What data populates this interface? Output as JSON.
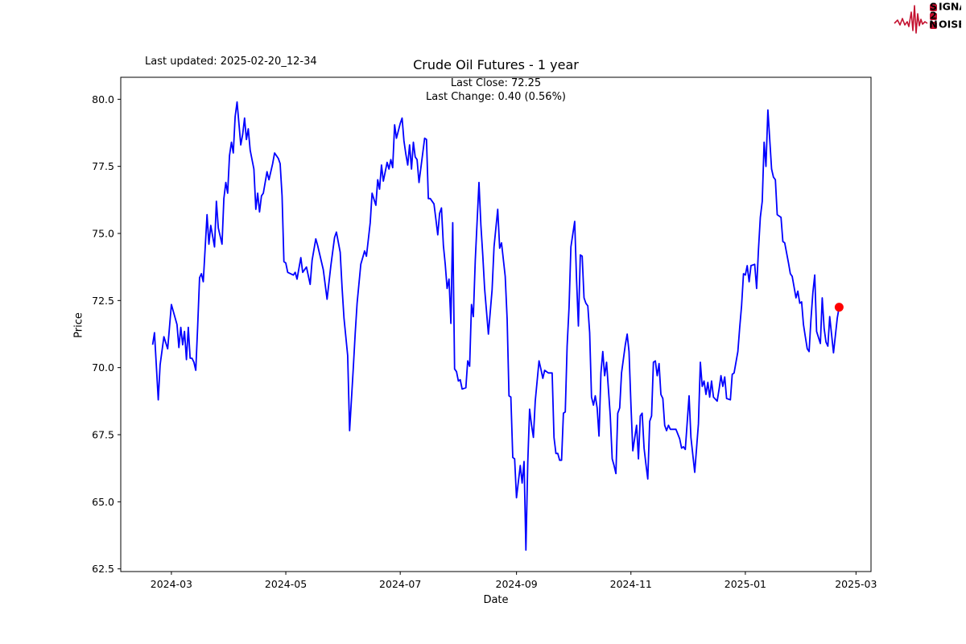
{
  "header": {
    "last_updated": "Last updated: 2025-02-20_12-34",
    "title": "Crude Oil Futures - 1 year",
    "subtitle_line1": "Last Close: 72.25",
    "subtitle_line2": "Last Change: 0.40 (0.56%)"
  },
  "logo": {
    "s": "S",
    "ignal": "IGNAL",
    "two": "2",
    "n": "N",
    "oise": "OISE",
    "accent_color": "#c41230",
    "word_color": "#4a1010"
  },
  "chart_data": {
    "type": "line",
    "title": "Crude Oil Futures - 1 year",
    "xlabel": "Date",
    "ylabel": "Price",
    "grid": false,
    "legend": "none",
    "line_color": "#0000ff",
    "line_width": 1.8,
    "marker_color": "#ff0000",
    "last_close": 72.25,
    "last_change": 0.4,
    "last_change_pct": 0.56,
    "ylim": [
      62.5,
      80.0
    ],
    "y_domain": [
      62.4,
      80.82
    ],
    "x_domain": [
      "2024-02-03",
      "2025-03-09"
    ],
    "y_ticks": [
      "80.0",
      "77.5",
      "75.0",
      "72.5",
      "70.0",
      "67.5",
      "65.0",
      "62.5"
    ],
    "y_tick_values": [
      80.0,
      77.5,
      75.0,
      72.5,
      70.0,
      67.5,
      65.0,
      62.5
    ],
    "x_ticks": [
      {
        "label": "2024-03",
        "date": "2024-03-01"
      },
      {
        "label": "2024-05",
        "date": "2024-05-01"
      },
      {
        "label": "2024-07",
        "date": "2024-07-01"
      },
      {
        "label": "2024-09",
        "date": "2024-09-01"
      },
      {
        "label": "2024-11",
        "date": "2024-11-01"
      },
      {
        "label": "2025-01",
        "date": "2025-01-01"
      },
      {
        "label": "2025-03",
        "date": "2025-03-01"
      }
    ],
    "series": [
      [
        "2024-02-20",
        70.85
      ],
      [
        "2024-02-21",
        71.3
      ],
      [
        "2024-02-23",
        68.8
      ],
      [
        "2024-02-24",
        70.1
      ],
      [
        "2024-02-26",
        71.15
      ],
      [
        "2024-02-28",
        70.7
      ],
      [
        "2024-03-01",
        72.35
      ],
      [
        "2024-03-04",
        71.6
      ],
      [
        "2024-03-05",
        70.75
      ],
      [
        "2024-03-06",
        71.5
      ],
      [
        "2024-03-07",
        70.85
      ],
      [
        "2024-03-08",
        71.35
      ],
      [
        "2024-03-09",
        70.3
      ],
      [
        "2024-03-10",
        71.5
      ],
      [
        "2024-03-11",
        70.35
      ],
      [
        "2024-03-12",
        70.35
      ],
      [
        "2024-03-13",
        70.2
      ],
      [
        "2024-03-14",
        69.9
      ],
      [
        "2024-03-15",
        71.5
      ],
      [
        "2024-03-16",
        73.35
      ],
      [
        "2024-03-17",
        73.5
      ],
      [
        "2024-03-18",
        73.2
      ],
      [
        "2024-03-20",
        75.7
      ],
      [
        "2024-03-21",
        74.6
      ],
      [
        "2024-03-22",
        75.3
      ],
      [
        "2024-03-24",
        74.5
      ],
      [
        "2024-03-25",
        76.2
      ],
      [
        "2024-03-26",
        75.2
      ],
      [
        "2024-03-28",
        74.6
      ],
      [
        "2024-03-29",
        76.3
      ],
      [
        "2024-03-30",
        76.9
      ],
      [
        "2024-03-31",
        76.5
      ],
      [
        "2024-04-01",
        77.9
      ],
      [
        "2024-04-02",
        78.4
      ],
      [
        "2024-04-03",
        78.0
      ],
      [
        "2024-04-04",
        79.35
      ],
      [
        "2024-04-05",
        79.9
      ],
      [
        "2024-04-07",
        78.3
      ],
      [
        "2024-04-08",
        78.7
      ],
      [
        "2024-04-09",
        79.3
      ],
      [
        "2024-04-10",
        78.5
      ],
      [
        "2024-04-11",
        78.9
      ],
      [
        "2024-04-12",
        78.1
      ],
      [
        "2024-04-14",
        77.4
      ],
      [
        "2024-04-15",
        75.9
      ],
      [
        "2024-04-16",
        76.5
      ],
      [
        "2024-04-17",
        75.8
      ],
      [
        "2024-04-18",
        76.4
      ],
      [
        "2024-04-19",
        76.5
      ],
      [
        "2024-04-21",
        77.3
      ],
      [
        "2024-04-22",
        77.0
      ],
      [
        "2024-04-24",
        77.6
      ],
      [
        "2024-04-25",
        78.0
      ],
      [
        "2024-04-27",
        77.8
      ],
      [
        "2024-04-28",
        77.6
      ],
      [
        "2024-04-29",
        76.4
      ],
      [
        "2024-04-30",
        73.95
      ],
      [
        "2024-05-01",
        73.9
      ],
      [
        "2024-05-02",
        73.55
      ],
      [
        "2024-05-05",
        73.45
      ],
      [
        "2024-05-06",
        73.55
      ],
      [
        "2024-05-07",
        73.3
      ],
      [
        "2024-05-09",
        74.1
      ],
      [
        "2024-05-10",
        73.55
      ],
      [
        "2024-05-12",
        73.75
      ],
      [
        "2024-05-14",
        73.1
      ],
      [
        "2024-05-15",
        74.0
      ],
      [
        "2024-05-17",
        74.8
      ],
      [
        "2024-05-18",
        74.55
      ],
      [
        "2024-05-21",
        73.65
      ],
      [
        "2024-05-23",
        72.55
      ],
      [
        "2024-05-25",
        73.8
      ],
      [
        "2024-05-27",
        74.85
      ],
      [
        "2024-05-28",
        75.05
      ],
      [
        "2024-05-30",
        74.3
      ],
      [
        "2024-05-31",
        73.0
      ],
      [
        "2024-06-01",
        71.85
      ],
      [
        "2024-06-03",
        70.45
      ],
      [
        "2024-06-04",
        67.65
      ],
      [
        "2024-06-06",
        70.0
      ],
      [
        "2024-06-07",
        71.3
      ],
      [
        "2024-06-08",
        72.4
      ],
      [
        "2024-06-10",
        73.85
      ],
      [
        "2024-06-11",
        74.1
      ],
      [
        "2024-06-12",
        74.35
      ],
      [
        "2024-06-13",
        74.15
      ],
      [
        "2024-06-15",
        75.4
      ],
      [
        "2024-06-16",
        76.5
      ],
      [
        "2024-06-18",
        76.05
      ],
      [
        "2024-06-19",
        77.0
      ],
      [
        "2024-06-20",
        76.65
      ],
      [
        "2024-06-21",
        77.55
      ],
      [
        "2024-06-22",
        76.95
      ],
      [
        "2024-06-24",
        77.65
      ],
      [
        "2024-06-25",
        77.4
      ],
      [
        "2024-06-26",
        77.75
      ],
      [
        "2024-06-27",
        77.45
      ],
      [
        "2024-06-28",
        79.05
      ],
      [
        "2024-06-29",
        78.55
      ],
      [
        "2024-07-01",
        79.1
      ],
      [
        "2024-07-02",
        79.3
      ],
      [
        "2024-07-03",
        78.45
      ],
      [
        "2024-07-04",
        77.95
      ],
      [
        "2024-07-05",
        77.55
      ],
      [
        "2024-07-06",
        78.3
      ],
      [
        "2024-07-07",
        77.4
      ],
      [
        "2024-07-08",
        78.4
      ],
      [
        "2024-07-09",
        77.85
      ],
      [
        "2024-07-10",
        77.75
      ],
      [
        "2024-07-11",
        76.9
      ],
      [
        "2024-07-14",
        78.55
      ],
      [
        "2024-07-15",
        78.5
      ],
      [
        "2024-07-16",
        76.3
      ],
      [
        "2024-07-17",
        76.3
      ],
      [
        "2024-07-19",
        76.1
      ],
      [
        "2024-07-20",
        75.55
      ],
      [
        "2024-07-21",
        74.95
      ],
      [
        "2024-07-22",
        75.75
      ],
      [
        "2024-07-23",
        75.95
      ],
      [
        "2024-07-24",
        74.55
      ],
      [
        "2024-07-25",
        73.85
      ],
      [
        "2024-07-26",
        72.95
      ],
      [
        "2024-07-27",
        73.3
      ],
      [
        "2024-07-28",
        71.65
      ],
      [
        "2024-07-29",
        75.4
      ],
      [
        "2024-07-30",
        69.95
      ],
      [
        "2024-07-31",
        69.85
      ],
      [
        "2024-08-01",
        69.5
      ],
      [
        "2024-08-02",
        69.55
      ],
      [
        "2024-08-03",
        69.2
      ],
      [
        "2024-08-05",
        69.25
      ],
      [
        "2024-08-06",
        70.25
      ],
      [
        "2024-08-07",
        70.05
      ],
      [
        "2024-08-08",
        72.35
      ],
      [
        "2024-08-09",
        71.9
      ],
      [
        "2024-08-10",
        74.0
      ],
      [
        "2024-08-12",
        76.9
      ],
      [
        "2024-08-13",
        75.3
      ],
      [
        "2024-08-14",
        74.2
      ],
      [
        "2024-08-15",
        72.95
      ],
      [
        "2024-08-17",
        71.25
      ],
      [
        "2024-08-19",
        72.9
      ],
      [
        "2024-08-20",
        74.5
      ],
      [
        "2024-08-22",
        75.9
      ],
      [
        "2024-08-23",
        74.45
      ],
      [
        "2024-08-24",
        74.65
      ],
      [
        "2024-08-26",
        73.4
      ],
      [
        "2024-08-27",
        71.8
      ],
      [
        "2024-08-28",
        68.95
      ],
      [
        "2024-08-29",
        68.9
      ],
      [
        "2024-08-30",
        66.65
      ],
      [
        "2024-08-31",
        66.6
      ],
      [
        "2024-09-01",
        65.15
      ],
      [
        "2024-09-03",
        66.35
      ],
      [
        "2024-09-04",
        65.7
      ],
      [
        "2024-09-05",
        66.5
      ],
      [
        "2024-09-06",
        63.2
      ],
      [
        "2024-09-07",
        66.45
      ],
      [
        "2024-09-08",
        68.45
      ],
      [
        "2024-09-09",
        67.85
      ],
      [
        "2024-09-10",
        67.4
      ],
      [
        "2024-09-11",
        68.75
      ],
      [
        "2024-09-13",
        70.25
      ],
      [
        "2024-09-14",
        69.95
      ],
      [
        "2024-09-15",
        69.6
      ],
      [
        "2024-09-16",
        69.9
      ],
      [
        "2024-09-18",
        69.8
      ],
      [
        "2024-09-20",
        69.8
      ],
      [
        "2024-09-21",
        67.4
      ],
      [
        "2024-09-22",
        66.8
      ],
      [
        "2024-09-23",
        66.8
      ],
      [
        "2024-09-24",
        66.55
      ],
      [
        "2024-09-25",
        66.55
      ],
      [
        "2024-09-26",
        68.3
      ],
      [
        "2024-09-27",
        68.35
      ],
      [
        "2024-09-28",
        70.8
      ],
      [
        "2024-09-29",
        72.25
      ],
      [
        "2024-09-30",
        74.5
      ],
      [
        "2024-10-02",
        75.45
      ],
      [
        "2024-10-03",
        73.3
      ],
      [
        "2024-10-04",
        71.55
      ],
      [
        "2024-10-05",
        74.2
      ],
      [
        "2024-10-06",
        74.15
      ],
      [
        "2024-10-07",
        72.6
      ],
      [
        "2024-10-08",
        72.4
      ],
      [
        "2024-10-09",
        72.3
      ],
      [
        "2024-10-10",
        71.3
      ],
      [
        "2024-10-11",
        68.9
      ],
      [
        "2024-10-12",
        68.6
      ],
      [
        "2024-10-13",
        68.95
      ],
      [
        "2024-10-14",
        68.5
      ],
      [
        "2024-10-15",
        67.45
      ],
      [
        "2024-10-16",
        69.8
      ],
      [
        "2024-10-17",
        70.6
      ],
      [
        "2024-10-18",
        69.7
      ],
      [
        "2024-10-19",
        70.2
      ],
      [
        "2024-10-20",
        69.2
      ],
      [
        "2024-10-21",
        68.2
      ],
      [
        "2024-10-22",
        66.6
      ],
      [
        "2024-10-23",
        66.35
      ],
      [
        "2024-10-24",
        66.05
      ],
      [
        "2024-10-25",
        68.3
      ],
      [
        "2024-10-26",
        68.5
      ],
      [
        "2024-10-27",
        69.8
      ],
      [
        "2024-10-29",
        70.85
      ],
      [
        "2024-10-30",
        71.25
      ],
      [
        "2024-10-31",
        70.6
      ],
      [
        "2024-11-01",
        68.6
      ],
      [
        "2024-11-02",
        66.9
      ],
      [
        "2024-11-04",
        67.85
      ],
      [
        "2024-11-05",
        66.6
      ],
      [
        "2024-11-06",
        68.2
      ],
      [
        "2024-11-07",
        68.3
      ],
      [
        "2024-11-08",
        67.0
      ],
      [
        "2024-11-09",
        66.4
      ],
      [
        "2024-11-10",
        65.85
      ],
      [
        "2024-11-11",
        68.0
      ],
      [
        "2024-11-12",
        68.2
      ],
      [
        "2024-11-13",
        70.2
      ],
      [
        "2024-11-14",
        70.25
      ],
      [
        "2024-11-15",
        69.7
      ],
      [
        "2024-11-16",
        70.15
      ],
      [
        "2024-11-17",
        69.0
      ],
      [
        "2024-11-18",
        68.85
      ],
      [
        "2024-11-19",
        67.85
      ],
      [
        "2024-11-20",
        67.65
      ],
      [
        "2024-11-21",
        67.85
      ],
      [
        "2024-11-22",
        67.7
      ],
      [
        "2024-11-24",
        67.7
      ],
      [
        "2024-11-25",
        67.7
      ],
      [
        "2024-11-27",
        67.35
      ],
      [
        "2024-11-28",
        67.0
      ],
      [
        "2024-11-29",
        67.05
      ],
      [
        "2024-11-30",
        66.95
      ],
      [
        "2024-12-02",
        68.95
      ],
      [
        "2024-12-03",
        67.4
      ],
      [
        "2024-12-05",
        66.1
      ],
      [
        "2024-12-07",
        67.9
      ],
      [
        "2024-12-08",
        70.2
      ],
      [
        "2024-12-09",
        69.3
      ],
      [
        "2024-12-10",
        69.5
      ],
      [
        "2024-12-11",
        69.0
      ],
      [
        "2024-12-12",
        69.45
      ],
      [
        "2024-12-13",
        68.9
      ],
      [
        "2024-12-14",
        69.5
      ],
      [
        "2024-12-15",
        68.9
      ],
      [
        "2024-12-17",
        68.75
      ],
      [
        "2024-12-18",
        69.2
      ],
      [
        "2024-12-19",
        69.7
      ],
      [
        "2024-12-20",
        69.3
      ],
      [
        "2024-12-21",
        69.65
      ],
      [
        "2024-12-22",
        68.85
      ],
      [
        "2024-12-24",
        68.8
      ],
      [
        "2024-12-25",
        69.75
      ],
      [
        "2024-12-26",
        69.8
      ],
      [
        "2024-12-28",
        70.6
      ],
      [
        "2024-12-29",
        71.5
      ],
      [
        "2024-12-30",
        72.3
      ],
      [
        "2024-12-31",
        73.5
      ],
      [
        "2025-01-01",
        73.45
      ],
      [
        "2025-01-02",
        73.8
      ],
      [
        "2025-01-03",
        73.2
      ],
      [
        "2025-01-04",
        73.8
      ],
      [
        "2025-01-06",
        73.85
      ],
      [
        "2025-01-07",
        72.95
      ],
      [
        "2025-01-08",
        74.4
      ],
      [
        "2025-01-09",
        75.6
      ],
      [
        "2025-01-10",
        76.2
      ],
      [
        "2025-01-11",
        78.4
      ],
      [
        "2025-01-12",
        77.5
      ],
      [
        "2025-01-13",
        79.6
      ],
      [
        "2025-01-15",
        77.4
      ],
      [
        "2025-01-16",
        77.1
      ],
      [
        "2025-01-17",
        77.0
      ],
      [
        "2025-01-18",
        75.7
      ],
      [
        "2025-01-20",
        75.6
      ],
      [
        "2025-01-21",
        74.7
      ],
      [
        "2025-01-22",
        74.65
      ],
      [
        "2025-01-24",
        73.9
      ],
      [
        "2025-01-25",
        73.5
      ],
      [
        "2025-01-26",
        73.4
      ],
      [
        "2025-01-28",
        72.6
      ],
      [
        "2025-01-29",
        72.85
      ],
      [
        "2025-01-30",
        72.4
      ],
      [
        "2025-01-31",
        72.45
      ],
      [
        "2025-02-01",
        71.6
      ],
      [
        "2025-02-02",
        71.15
      ],
      [
        "2025-02-03",
        70.7
      ],
      [
        "2025-02-04",
        70.6
      ],
      [
        "2025-02-05",
        71.8
      ],
      [
        "2025-02-06",
        72.8
      ],
      [
        "2025-02-07",
        73.45
      ],
      [
        "2025-02-08",
        71.35
      ],
      [
        "2025-02-10",
        70.9
      ],
      [
        "2025-02-11",
        72.6
      ],
      [
        "2025-02-12",
        71.45
      ],
      [
        "2025-02-13",
        70.95
      ],
      [
        "2025-02-14",
        70.8
      ],
      [
        "2025-02-15",
        71.9
      ],
      [
        "2025-02-17",
        70.55
      ],
      [
        "2025-02-19",
        71.85
      ],
      [
        "2025-02-20",
        72.25
      ]
    ]
  }
}
